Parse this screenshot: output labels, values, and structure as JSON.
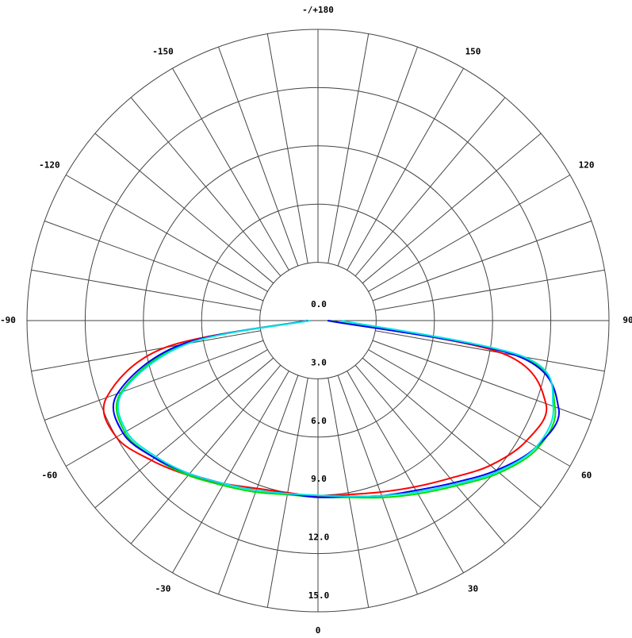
{
  "chart_data": {
    "type": "polar",
    "theta": [
      -90,
      -80,
      -70,
      -60,
      -50,
      -40,
      -30,
      -20,
      -10,
      0,
      10,
      20,
      30,
      40,
      50,
      60,
      70,
      80,
      90
    ],
    "series": [
      {
        "color": "#ff0000",
        "values": [
          0.5,
          8.0,
          11.6,
          12.0,
          11.2,
          10.4,
          9.7,
          9.2,
          9.0,
          9.05,
          9.1,
          9.4,
          9.9,
          10.6,
          11.6,
          12.4,
          12.5,
          9.6,
          0.5
        ]
      },
      {
        "color": "#00dd00",
        "values": [
          0.5,
          7.0,
          10.8,
          11.5,
          11.0,
          10.4,
          9.8,
          9.4,
          9.1,
          9.1,
          9.25,
          9.7,
          10.3,
          11.1,
          12.2,
          13.1,
          13.0,
          10.6,
          0.6
        ]
      },
      {
        "color": "#0000ff",
        "values": [
          0.5,
          7.2,
          11.0,
          11.6,
          11.0,
          10.3,
          9.7,
          9.3,
          9.05,
          9.1,
          9.2,
          9.6,
          10.1,
          10.9,
          12.0,
          13.0,
          13.2,
          10.4,
          0.5
        ]
      },
      {
        "color": "#00e5e5",
        "values": [
          0.4,
          6.8,
          10.7,
          11.4,
          10.9,
          10.3,
          9.7,
          9.3,
          9.05,
          9.0,
          9.2,
          9.6,
          10.2,
          11.0,
          12.1,
          13.0,
          12.9,
          10.8,
          1.2
        ]
      }
    ],
    "rlim": [
      0,
      15
    ],
    "rticks": [
      {
        "value": 0,
        "label": "0.0"
      },
      {
        "value": 3,
        "label": "3.0"
      },
      {
        "value": 6,
        "label": "6.0"
      },
      {
        "value": 9,
        "label": "9.0"
      },
      {
        "value": 12,
        "label": "12.0"
      },
      {
        "value": 15,
        "label": "15.0"
      }
    ],
    "thetaticks": [
      0,
      30,
      60,
      90,
      120,
      150,
      {
        "value": 180,
        "label": "-/+180"
      },
      -150,
      -120,
      -90,
      -60,
      -30
    ],
    "theta_grid": 10
  }
}
